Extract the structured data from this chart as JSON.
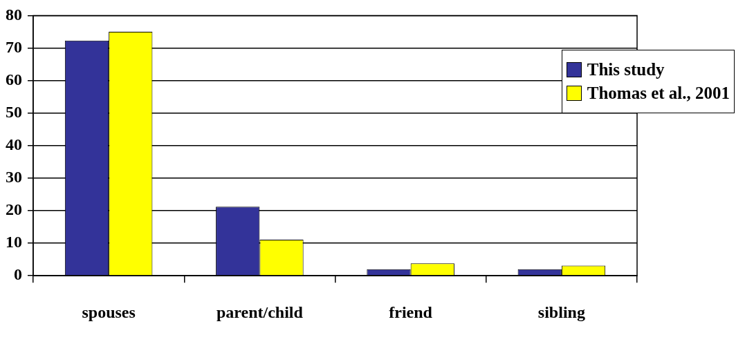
{
  "chart_data": {
    "type": "bar",
    "categories": [
      "spouses",
      "parent/child",
      "friend",
      "sibling"
    ],
    "series": [
      {
        "name": "This study",
        "color": "#333399",
        "values": [
          72.3,
          21.2,
          2,
          2
        ]
      },
      {
        "name": "Thomas et al., 2001",
        "color": "#ffff00",
        "values": [
          75,
          11.1,
          3.8,
          3.1
        ]
      }
    ],
    "ylim": [
      0,
      80
    ],
    "yticks": [
      0,
      10,
      20,
      30,
      40,
      50,
      60,
      70,
      80
    ],
    "grid": "y",
    "legend": "right"
  }
}
